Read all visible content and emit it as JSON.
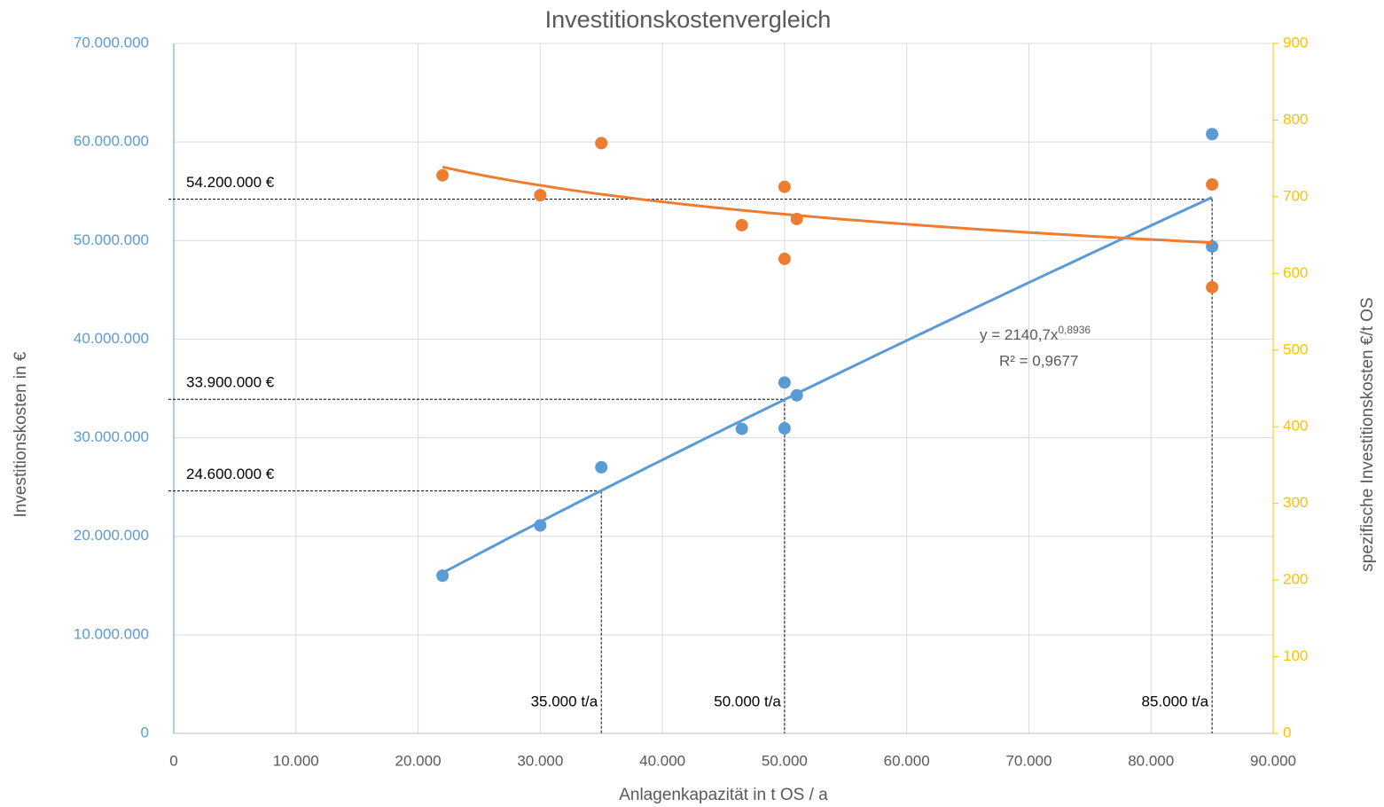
{
  "chart_data": {
    "type": "scatter",
    "title": "Investitionskostenvergleich",
    "x_label": "Anlagenkapazität in t OS / a",
    "y_label": "Investitionskosten in €",
    "y2_label": "spezifische Investitionskosten €/t OS",
    "x": [
      22000,
      30000,
      35000,
      46500,
      50000,
      50000,
      51000,
      85000,
      85000
    ],
    "series": [
      {
        "color": "#5b9bd5",
        "values": [
          16000000,
          21100000,
          27000000,
          30900000,
          35600000,
          30950000,
          34300000,
          60800000,
          49400000
        ],
        "trendline": "power"
      },
      {
        "color": "#ed7d31",
        "axis": "y2",
        "x": [
          22000,
          30000,
          35000,
          46500,
          50000,
          50000,
          51000,
          85000,
          85000
        ],
        "values": [
          728,
          702,
          770,
          663,
          713,
          619,
          671,
          716,
          582
        ],
        "trendline": "power"
      }
    ],
    "xlim": [
      0,
      90000
    ],
    "xticks": [
      0,
      {
        "value": 10000,
        "label": "10.000"
      },
      {
        "value": 20000,
        "label": "20.000"
      },
      {
        "value": 30000,
        "label": "30.000"
      },
      {
        "value": 40000,
        "label": "40.000"
      },
      {
        "value": 50000,
        "label": "50.000"
      },
      {
        "value": 60000,
        "label": "60.000"
      },
      {
        "value": 70000,
        "label": "70.000"
      },
      {
        "value": 80000,
        "label": "80.000"
      },
      {
        "value": 90000,
        "label": "90.000"
      }
    ],
    "ylim": [
      0,
      70000000
    ],
    "yticks": [
      0,
      {
        "value": 10000000,
        "label": "10.000.000"
      },
      {
        "value": 20000000,
        "label": "20.000.000"
      },
      {
        "value": 30000000,
        "label": "30.000.000"
      },
      {
        "value": 40000000,
        "label": "40.000.000"
      },
      {
        "value": 50000000,
        "label": "50.000.000"
      },
      {
        "value": 60000000,
        "label": "60.000.000"
      },
      {
        "value": 70000000,
        "label": "70.000.000"
      }
    ],
    "y2lim": [
      0,
      900
    ],
    "y2ticks": [
      0,
      100,
      200,
      300,
      400,
      500,
      600,
      700,
      800,
      900
    ],
    "y_axis_color": "#5b9bd5",
    "y2_axis_color": "#ffc000",
    "grid": true,
    "trendline_label": {
      "equation": "y = 2140,7x",
      "exponent": "0,8936",
      "r2": "R² = 0,9677"
    },
    "annotations": [
      {
        "x": 35000,
        "y": 24600000,
        "x_label": "35.000 t/a",
        "y_label": "24.600.000 €"
      },
      {
        "x": 50000,
        "y": 33900000,
        "x_label": "50.000 t/a",
        "y_label": "33.900.000 €"
      },
      {
        "x": 85000,
        "y": 54200000,
        "x_label": "85.000 t/a",
        "y_label": "54.200.000 €"
      }
    ]
  }
}
